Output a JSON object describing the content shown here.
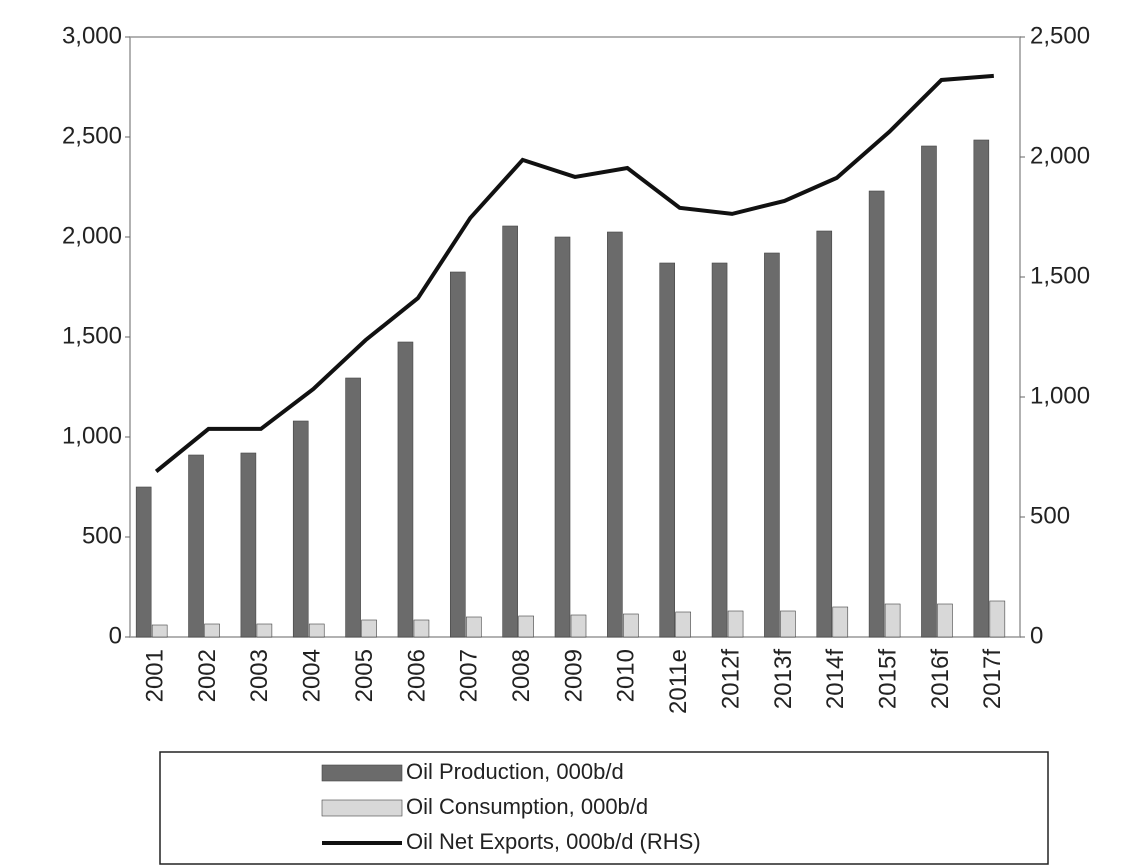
{
  "chart_data": {
    "type": "bar",
    "categories": [
      "2001",
      "2002",
      "2003",
      "2004",
      "2005",
      "2006",
      "2007",
      "2008",
      "2009",
      "2010",
      "2011e",
      "2012f",
      "2013f",
      "2014f",
      "2015f",
      "2016f",
      "2017f"
    ],
    "series": [
      {
        "name": "Oil Production, 000b/d",
        "color": "#6b6b6b",
        "type": "bar",
        "values": [
          750,
          910,
          920,
          1080,
          1295,
          1475,
          1825,
          2055,
          2000,
          2025,
          1870,
          1870,
          1920,
          2030,
          2230,
          2455,
          2485
        ]
      },
      {
        "name": "Oil Consumption, 000b/d",
        "color": "#d8d8d8",
        "type": "bar",
        "values": [
          60,
          65,
          65,
          65,
          85,
          85,
          100,
          105,
          110,
          115,
          125,
          130,
          130,
          150,
          165,
          165,
          180
        ]
      },
      {
        "name": "Oil Net Exports, 000b/d (RHS)",
        "color": "#111111",
        "type": "line",
        "axis": "y2",
        "values": [
          690,
          867,
          867,
          1033,
          1237,
          1412,
          1746,
          1988,
          1917,
          1954,
          1788,
          1763,
          1817,
          1913,
          2104,
          2321,
          2338
        ]
      }
    ],
    "ylim": [
      0,
      3000
    ],
    "yticks": [
      0,
      {
        "value": 500,
        "label": "500"
      },
      {
        "value": 1000,
        "label": "1,000"
      },
      {
        "value": 1500,
        "label": "1,500"
      },
      {
        "value": 2000,
        "label": "2,000"
      },
      {
        "value": 2500,
        "label": "2,500"
      },
      {
        "value": 3000,
        "label": "3,000"
      }
    ],
    "y2lim": [
      0,
      2500
    ],
    "y2ticks": [
      0,
      500,
      {
        "value": 1000,
        "label": "1,000"
      },
      {
        "value": 1500,
        "label": "1,500"
      },
      {
        "value": 2000,
        "label": "2,000"
      },
      {
        "value": 2500,
        "label": "2,500"
      }
    ]
  }
}
